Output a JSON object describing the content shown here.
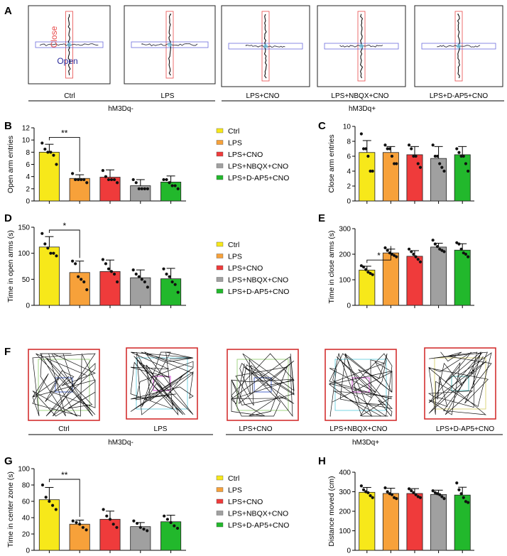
{
  "colors": {
    "ctrl": "#f7e81a",
    "lps": "#f7a13a",
    "cno": "#ef3b3b",
    "nbqx": "#a0a0a0",
    "dap5": "#22b82c",
    "close": "#e84a4a",
    "open": "#6b6bdc",
    "frame": "#d43030"
  },
  "panel_letters": {
    "A": "A",
    "B": "B",
    "C": "C",
    "D": "D",
    "E": "E",
    "F": "F",
    "G": "G",
    "H": "H"
  },
  "maze_labels": {
    "close": "Close",
    "open": "Open"
  },
  "track_labels": [
    "Ctrl",
    "LPS",
    "LPS+CNO",
    "LPS+NBQX+CNO",
    "LPS+D-AP5+CNO"
  ],
  "group_labels": {
    "hm3dq_minus": "hM3Dq-",
    "hm3dq_plus": "hM3Dq+"
  },
  "legend": [
    "Ctrl",
    "LPS",
    "LPS+CNO",
    "LPS+NBQX+CNO",
    "LPS+D-AP5+CNO"
  ],
  "chart_data": [
    {
      "id": "B",
      "type": "bar",
      "ylabel": "Open arm entries",
      "ylim": [
        0,
        12
      ],
      "yticks": [
        0,
        2,
        4,
        6,
        8,
        10,
        12
      ],
      "categories": [
        "Ctrl",
        "LPS",
        "LPS+CNO",
        "LPS+NBQX+CNO",
        "LPS+D-AP5+CNO"
      ],
      "values": [
        8.0,
        3.7,
        3.9,
        2.5,
        3.1
      ],
      "errors": [
        1.3,
        0.6,
        1.2,
        1.0,
        1.0
      ],
      "points": [
        [
          9.5,
          8.5,
          8,
          8,
          7.5,
          6
        ],
        [
          4.5,
          3.5,
          3.5,
          3.5,
          3.5,
          3
        ],
        [
          5,
          4,
          3.5,
          3.5,
          3.5,
          3
        ],
        [
          3.5,
          3,
          2,
          2,
          2,
          2
        ],
        [
          3.5,
          3.5,
          3,
          2.5,
          2.5,
          2
        ]
      ],
      "significance": {
        "from": 0,
        "to": 1,
        "label": "**"
      }
    },
    {
      "id": "C",
      "type": "bar",
      "ylabel": "Close arm entries",
      "ylim": [
        0,
        10
      ],
      "yticks": [
        0,
        2,
        4,
        6,
        8,
        10
      ],
      "categories": [
        "Ctrl",
        "LPS",
        "LPS+CNO",
        "LPS+NBQX+CNO",
        "LPS+D-AP5+CNO"
      ],
      "values": [
        6.5,
        6.5,
        6.2,
        5.7,
        6.2
      ],
      "errors": [
        1.6,
        0.8,
        1.1,
        1.6,
        1.1
      ],
      "points": [
        [
          9,
          7,
          7,
          6,
          4,
          4
        ],
        [
          7.5,
          7,
          7,
          6,
          5,
          5
        ],
        [
          7.5,
          7,
          6,
          6,
          5,
          4.5
        ],
        [
          7.5,
          6,
          6,
          5,
          4.5,
          4
        ],
        [
          7,
          6.5,
          6,
          6,
          5,
          4
        ]
      ],
      "significance": null
    },
    {
      "id": "D",
      "type": "bar",
      "ylabel": "Time in open arms (s)",
      "ylim": [
        0,
        150
      ],
      "yticks": [
        0,
        50,
        100,
        150
      ],
      "categories": [
        "Ctrl",
        "LPS",
        "LPS+CNO",
        "LPS+NBQX+CNO",
        "LPS+D-AP5+CNO"
      ],
      "values": [
        112,
        63,
        65,
        53,
        51
      ],
      "errors": [
        20,
        22,
        22,
        15,
        20
      ],
      "points": [
        [
          138,
          118,
          110,
          100,
          100,
          95
        ],
        [
          85,
          80,
          55,
          50,
          45,
          30
        ],
        [
          88,
          80,
          70,
          65,
          60,
          45
        ],
        [
          68,
          60,
          55,
          50,
          45,
          35
        ],
        [
          70,
          60,
          55,
          45,
          40,
          25
        ]
      ],
      "significance": {
        "from": 0,
        "to": 1,
        "label": "*"
      }
    },
    {
      "id": "E",
      "type": "bar",
      "ylabel": "Time in close arms (s)",
      "ylim": [
        0,
        300
      ],
      "yticks": [
        0,
        100,
        200,
        300
      ],
      "categories": [
        "Ctrl",
        "LPS",
        "LPS+CNO",
        "LPS+NBQX+CNO",
        "LPS+D-AP5+CNO"
      ],
      "values": [
        138,
        205,
        192,
        228,
        216
      ],
      "errors": [
        15,
        15,
        22,
        15,
        25
      ],
      "points": [
        [
          155,
          150,
          140,
          130,
          125,
          120
        ],
        [
          225,
          215,
          205,
          200,
          195,
          190
        ],
        [
          220,
          210,
          200,
          190,
          180,
          170
        ],
        [
          255,
          240,
          230,
          220,
          215,
          210
        ],
        [
          245,
          240,
          220,
          205,
          200,
          190
        ]
      ],
      "significance": {
        "from": 0,
        "to": 1,
        "label": "*"
      }
    },
    {
      "id": "G",
      "type": "bar",
      "ylabel": "Time in center zone (s)",
      "ylim": [
        0,
        100
      ],
      "yticks": [
        0,
        20,
        40,
        60,
        80,
        100
      ],
      "categories": [
        "Ctrl",
        "LPS",
        "LPS+CNO",
        "LPS+NBQX+CNO",
        "LPS+D-AP5+CNO"
      ],
      "values": [
        62,
        32,
        38,
        29,
        35
      ],
      "errors": [
        15,
        5,
        10,
        5,
        8
      ],
      "points": [
        [
          80,
          65,
          60,
          55,
          50
        ],
        [
          36,
          34,
          32,
          28,
          25
        ],
        [
          50,
          42,
          38,
          32,
          28
        ],
        [
          36,
          33,
          28,
          26,
          24
        ],
        [
          42,
          38,
          34,
          30,
          27
        ]
      ],
      "significance": {
        "from": 0,
        "to": 1,
        "label": "**"
      }
    },
    {
      "id": "H",
      "type": "bar",
      "ylabel": "Distance moved (cm)",
      "ylim": [
        0,
        400
      ],
      "yticks": [
        0,
        100,
        200,
        300,
        400
      ],
      "categories": [
        "Ctrl",
        "LPS",
        "LPS+CNO",
        "LPS+NBQX+CNO",
        "LPS+D-AP5+CNO"
      ],
      "values": [
        297,
        291,
        291,
        286,
        283
      ],
      "errors": [
        25,
        27,
        25,
        22,
        40
      ],
      "points": [
        [
          330,
          310,
          300,
          295,
          280,
          270
        ],
        [
          320,
          300,
          290,
          285,
          270,
          265
        ],
        [
          315,
          305,
          295,
          285,
          275,
          270
        ],
        [
          305,
          295,
          290,
          285,
          275,
          265
        ],
        [
          345,
          310,
          290,
          270,
          250,
          245
        ]
      ],
      "significance": null
    }
  ]
}
